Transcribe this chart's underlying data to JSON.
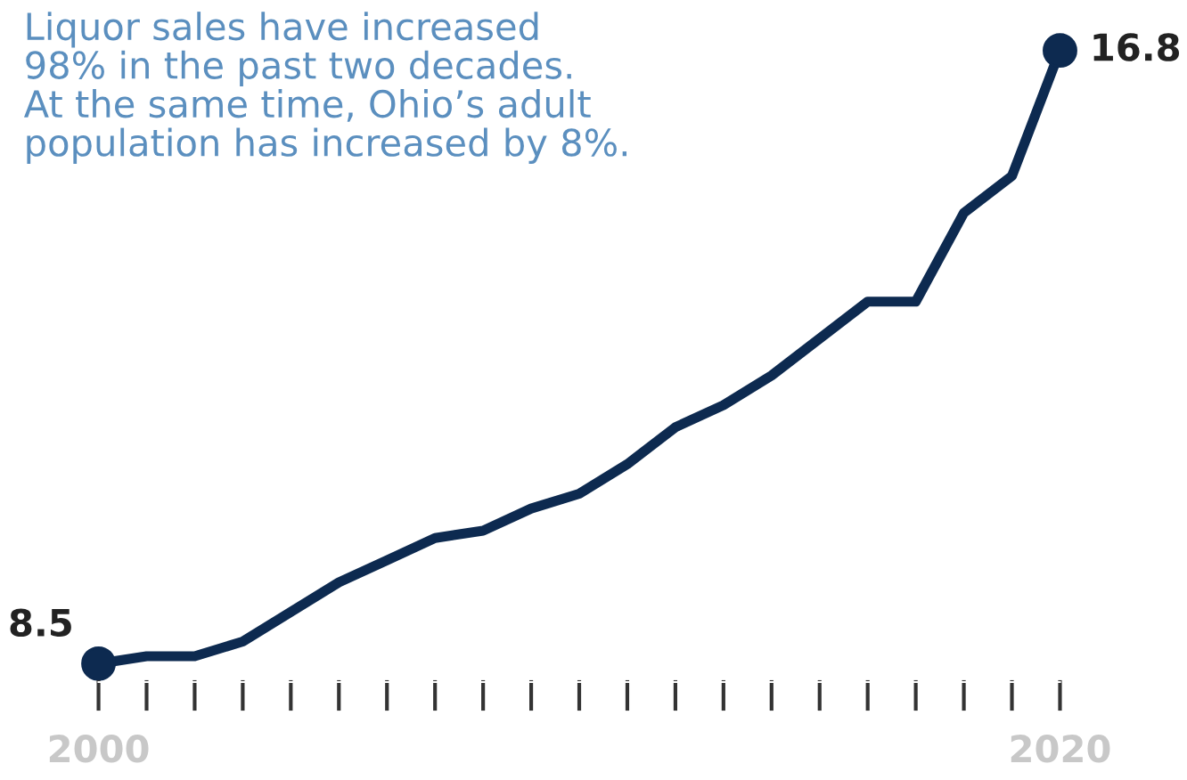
{
  "chart_data": {
    "type": "line",
    "x": [
      2000,
      2001,
      2002,
      2003,
      2004,
      2005,
      2006,
      2007,
      2008,
      2009,
      2010,
      2011,
      2012,
      2013,
      2014,
      2015,
      2016,
      2017,
      2018,
      2019,
      2020
    ],
    "series": [
      {
        "color": "#0d2a50",
        "values": [
          8.5,
          8.6,
          8.6,
          8.8,
          9.2,
          9.6,
          9.9,
          10.2,
          10.3,
          10.6,
          10.8,
          11.2,
          11.7,
          12.0,
          12.4,
          12.9,
          13.4,
          13.4,
          14.6,
          15.1,
          16.8
        ],
        "value_labels": [
          "8.5",
          null,
          null,
          null,
          null,
          null,
          null,
          null,
          null,
          null,
          null,
          null,
          null,
          null,
          null,
          null,
          null,
          null,
          null,
          null,
          "16.8"
        ]
      }
    ],
    "xticks": [
      2000,
      {
        "value": 2001,
        "label": null
      },
      {
        "value": 2002,
        "label": null
      },
      {
        "value": 2003,
        "label": null
      },
      {
        "value": 2004,
        "label": null
      },
      {
        "value": 2005,
        "label": null
      },
      {
        "value": 2006,
        "label": null
      },
      {
        "value": 2007,
        "label": null
      },
      {
        "value": 2008,
        "label": null
      },
      {
        "value": 2009,
        "label": null
      },
      {
        "value": 2010,
        "label": null
      },
      {
        "value": 2011,
        "label": null
      },
      {
        "value": 2012,
        "label": null
      },
      {
        "value": 2013,
        "label": null
      },
      {
        "value": 2014,
        "label": null
      },
      {
        "value": 2015,
        "label": null
      },
      {
        "value": 2016,
        "label": null
      },
      {
        "value": 2017,
        "label": null
      },
      {
        "value": 2018,
        "label": null
      },
      {
        "value": 2019,
        "label": null
      },
      2020
    ],
    "xlim": [
      2000,
      2020
    ],
    "tick_labels": "x",
    "grid": false,
    "line_style": "solid",
    "annotations": [
      "Liquor sales have increased\n98% in the past two decades.\nAt the same time, Ohio’s adult\npopulation has increased by 8%."
    ]
  }
}
